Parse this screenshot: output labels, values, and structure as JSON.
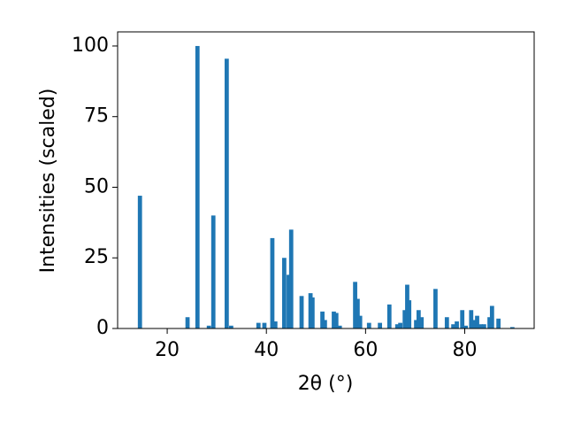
{
  "chart_data": {
    "type": "bar",
    "x_label": "2θ (°)",
    "y_label": "Intensities (scaled)",
    "color": "#1f77b4",
    "x": [
      14.5,
      24.1,
      26.1,
      28.4,
      29.3,
      32.0,
      32.9,
      38.4,
      39.6,
      41.2,
      41.8,
      43.6,
      44.5,
      45.0,
      47.1,
      48.9,
      49.3,
      51.3,
      51.8,
      53.6,
      54.1,
      54.8,
      57.9,
      58.4,
      58.9,
      60.7,
      62.9,
      64.8,
      66.4,
      67.0,
      67.9,
      68.4,
      68.8,
      70.2,
      70.7,
      71.3,
      74.1,
      76.4,
      77.7,
      78.4,
      79.5,
      80.2,
      81.3,
      82.0,
      82.5,
      83.2,
      83.9,
      85.0,
      85.5,
      86.8,
      89.6
    ],
    "values": [
      47,
      4,
      100,
      1,
      40,
      95.5,
      1,
      2,
      2,
      32,
      2.5,
      25,
      19,
      35,
      11.5,
      12.5,
      11,
      6,
      3,
      6,
      5.5,
      1,
      16.5,
      10.5,
      4.5,
      2,
      2,
      8.5,
      1.5,
      2,
      6.5,
      15.5,
      10,
      3,
      6.5,
      4,
      14,
      4,
      1.5,
      2.5,
      6.5,
      1,
      6.5,
      3,
      4.5,
      1.5,
      1.5,
      4,
      8,
      3.5,
      0.5
    ],
    "xlim": [
      10,
      94
    ],
    "ylim": [
      0,
      105
    ],
    "xticks": [
      20,
      40,
      60,
      80
    ],
    "yticks": [
      0,
      25,
      50,
      75,
      100
    ]
  }
}
